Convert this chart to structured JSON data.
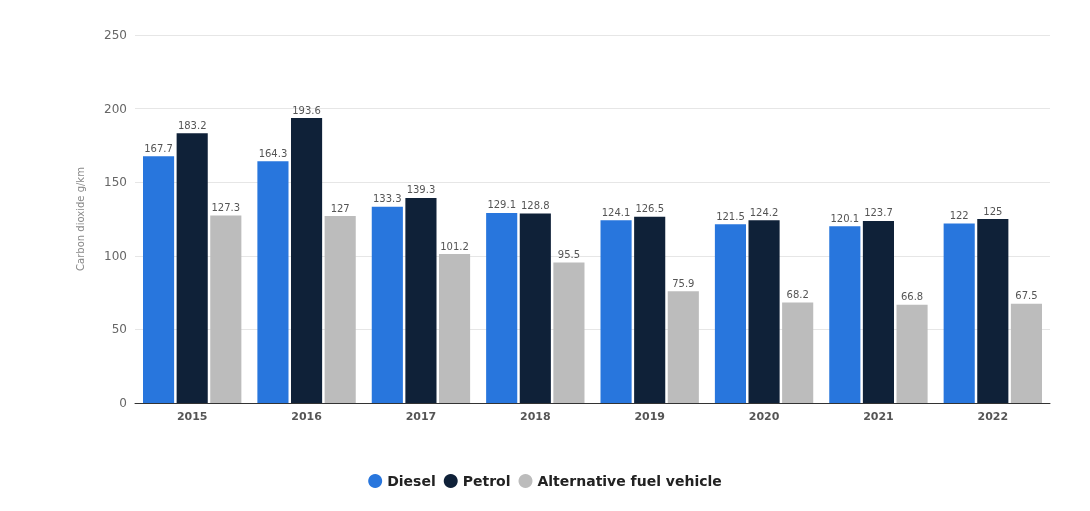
{
  "chart_data": {
    "type": "bar",
    "ylabel": "Carbon dioxide g/km",
    "categories": [
      "2015",
      "2016",
      "2017",
      "2018",
      "2019",
      "2020",
      "2021",
      "2022"
    ],
    "series": [
      {
        "name": "Diesel",
        "color": "#2876dd",
        "values": [
          167.7,
          164.3,
          133.3,
          129.1,
          124.1,
          121.5,
          120.1,
          122
        ]
      },
      {
        "name": "Petrol",
        "color": "#0f2138",
        "values": [
          183.2,
          193.6,
          139.3,
          128.8,
          126.5,
          124.2,
          123.7,
          125
        ]
      },
      {
        "name": "Alternative fuel vehicle",
        "color": "#bcbcbc",
        "values": [
          127.3,
          127,
          101.2,
          95.5,
          75.9,
          68.2,
          66.8,
          67.5
        ]
      }
    ],
    "ylim": [
      0,
      250
    ],
    "yticks": [
      0,
      50,
      100,
      150,
      200,
      250
    ],
    "grid": "y",
    "legend": "bottom",
    "data_labels": true
  }
}
